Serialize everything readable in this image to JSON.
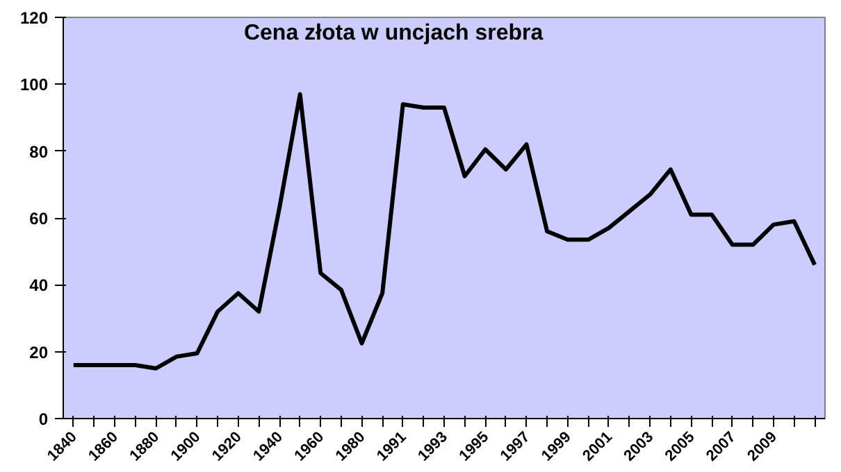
{
  "chart_data": {
    "type": "line",
    "title": "Cena złota w uncjach srebra",
    "categories": [
      "1840",
      null,
      "1860",
      null,
      "1880",
      null,
      "1900",
      null,
      "1920",
      null,
      "1940",
      null,
      "1960",
      null,
      "1980",
      null,
      "1991",
      null,
      "1993",
      null,
      "1995",
      null,
      "1997",
      null,
      "1999",
      null,
      "2001",
      null,
      "2003",
      null,
      "2005",
      null,
      "2007",
      null,
      "2009",
      null,
      null
    ],
    "series": [
      {
        "color": "#000000",
        "values": [
          16,
          16,
          16,
          16,
          15,
          18.5,
          19.5,
          32,
          37.5,
          32,
          63,
          97,
          43.5,
          38.5,
          22.5,
          37.5,
          94,
          93,
          93,
          72.5,
          80.5,
          74.5,
          82,
          56,
          53.5,
          53.5,
          57,
          62,
          67,
          74.5,
          61,
          61,
          52,
          52,
          58,
          59,
          46
        ]
      }
    ],
    "ylim": [
      0,
      120
    ],
    "yticks": [
      0,
      20,
      40,
      60,
      80,
      100,
      120
    ],
    "grid": false,
    "marker": "none",
    "line_style": "solid"
  }
}
